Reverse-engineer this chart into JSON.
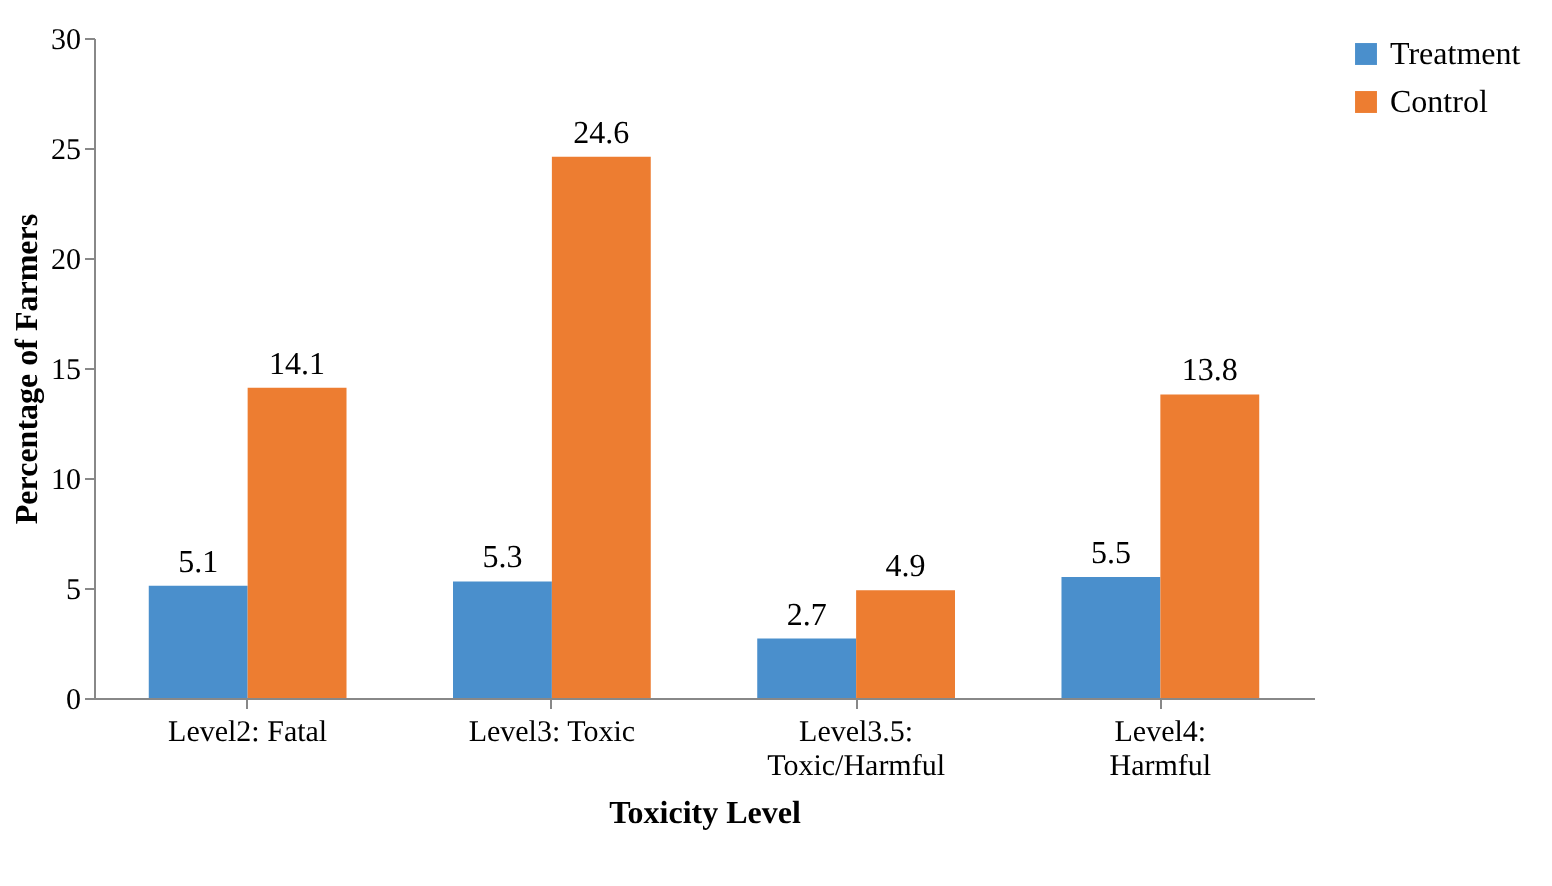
{
  "chart_data": {
    "type": "bar",
    "xlabel": "Toxicity Level",
    "ylabel": "Percentage of Farmers",
    "categories": [
      "Level2: Fatal",
      "Level3: Toxic",
      "Level3.5: Toxic/Harmful",
      "Level4: Harmful"
    ],
    "series": [
      {
        "name": "Treatment",
        "color": "#4a8fcc",
        "values": [
          5.1,
          5.3,
          2.7,
          5.5
        ]
      },
      {
        "name": "Control",
        "color": "#ed7d31",
        "values": [
          14.1,
          24.6,
          4.9,
          13.8
        ]
      }
    ],
    "ylim": [
      0,
      30
    ],
    "yticks": [
      0,
      5,
      10,
      15,
      20,
      25,
      30
    ],
    "grid": false,
    "legend": "right",
    "data_labels": true
  }
}
